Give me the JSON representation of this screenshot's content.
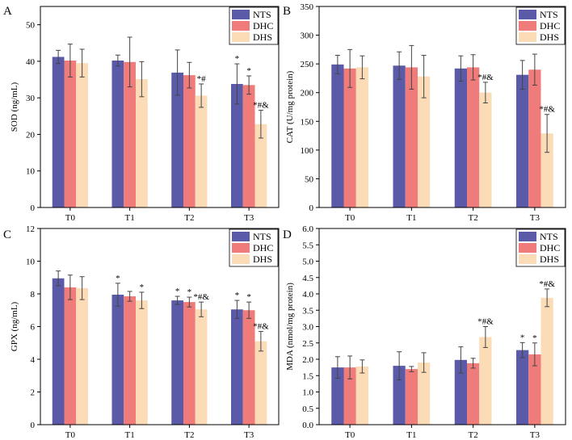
{
  "colors": {
    "NTS": "#5a5aa8",
    "DHC": "#ef7b7b",
    "DHS": "#fbdcb6"
  },
  "chart_data": [
    {
      "panel": "A",
      "type": "bar",
      "ylabel": "SOD (ng/mL)",
      "ylim": [
        0,
        55
      ],
      "yticks": [
        0,
        10,
        20,
        30,
        40,
        50
      ],
      "categories": [
        "T0",
        "T1",
        "T2",
        "T3"
      ],
      "legend_position": "top-right",
      "series": [
        {
          "name": "NTS",
          "values": [
            41.2,
            40.2,
            36.9,
            33.8
          ],
          "errors": [
            1.8,
            1.5,
            6.2,
            5.5
          ],
          "annotations": [
            "",
            "",
            "",
            "*"
          ]
        },
        {
          "name": "DHC",
          "values": [
            40.2,
            39.8,
            36.2,
            33.5
          ],
          "errors": [
            4.5,
            6.8,
            3.5,
            2.5
          ],
          "annotations": [
            "",
            "",
            "",
            "*"
          ]
        },
        {
          "name": "DHS",
          "values": [
            39.5,
            35.1,
            30.6,
            22.8
          ],
          "errors": [
            3.8,
            4.8,
            3.2,
            3.8
          ],
          "annotations": [
            "",
            "",
            "*#",
            "*#&"
          ]
        }
      ]
    },
    {
      "panel": "B",
      "type": "bar",
      "ylabel": "CAT (U/mg protein)",
      "ylim": [
        0,
        350
      ],
      "yticks": [
        0,
        50,
        100,
        150,
        200,
        250,
        300,
        350
      ],
      "categories": [
        "T0",
        "T1",
        "T2",
        "T3"
      ],
      "legend_position": "top-right",
      "series": [
        {
          "name": "NTS",
          "values": [
            249,
            247,
            242,
            231
          ],
          "errors": [
            16,
            24,
            22,
            25
          ],
          "annotations": [
            "",
            "",
            "",
            ""
          ]
        },
        {
          "name": "DHC",
          "values": [
            242,
            244,
            244,
            240
          ],
          "errors": [
            33,
            38,
            22,
            27
          ],
          "annotations": [
            "",
            "",
            "",
            ""
          ]
        },
        {
          "name": "DHS",
          "values": [
            244,
            228,
            200,
            129
          ],
          "errors": [
            20,
            37,
            18,
            33
          ],
          "annotations": [
            "",
            "",
            "*#&",
            "*#&"
          ]
        }
      ]
    },
    {
      "panel": "C",
      "type": "bar",
      "ylabel": "GPX (ng/mL)",
      "ylim": [
        0,
        12
      ],
      "yticks": [
        0,
        2,
        4,
        6,
        8,
        10,
        12
      ],
      "categories": [
        "T0",
        "T1",
        "T2",
        "T3"
      ],
      "legend_position": "top-right",
      "series": [
        {
          "name": "NTS",
          "values": [
            8.95,
            7.95,
            7.6,
            7.05
          ],
          "errors": [
            0.45,
            0.7,
            0.25,
            0.55
          ],
          "annotations": [
            "",
            "*",
            "*",
            "*"
          ]
        },
        {
          "name": "DHC",
          "values": [
            8.4,
            7.85,
            7.5,
            7.0
          ],
          "errors": [
            0.75,
            0.3,
            0.3,
            0.5
          ],
          "annotations": [
            "",
            "",
            "*",
            "*"
          ]
        },
        {
          "name": "DHS",
          "values": [
            8.35,
            7.6,
            7.05,
            5.1
          ],
          "errors": [
            0.7,
            0.5,
            0.45,
            0.6
          ],
          "annotations": [
            "",
            "*",
            "*#&",
            "*#&"
          ]
        }
      ]
    },
    {
      "panel": "D",
      "type": "bar",
      "ylabel": "MDA (nmol/mg protein)",
      "ylim": [
        0,
        6.0
      ],
      "yticks": [
        "0.0",
        "0.5",
        "1.0",
        "1.5",
        "2.0",
        "2.5",
        "3.0",
        "3.5",
        "4.0",
        "4.5",
        "5.0",
        "5.5",
        "6.0"
      ],
      "categories": [
        "T0",
        "T1",
        "T2",
        "T3"
      ],
      "legend_position": "top-right",
      "series": [
        {
          "name": "NTS",
          "values": [
            1.75,
            1.8,
            1.98,
            2.28
          ],
          "errors": [
            0.33,
            0.43,
            0.4,
            0.23
          ],
          "annotations": [
            "",
            "",
            "",
            "*"
          ]
        },
        {
          "name": "DHC",
          "values": [
            1.75,
            1.7,
            1.88,
            2.15
          ],
          "errors": [
            0.35,
            0.08,
            0.15,
            0.35
          ],
          "annotations": [
            "",
            "",
            "",
            "*"
          ]
        },
        {
          "name": "DHS",
          "values": [
            1.78,
            1.9,
            2.68,
            3.88
          ],
          "errors": [
            0.2,
            0.3,
            0.32,
            0.27
          ],
          "annotations": [
            "",
            "",
            "*#&",
            "*#&"
          ]
        }
      ]
    }
  ]
}
